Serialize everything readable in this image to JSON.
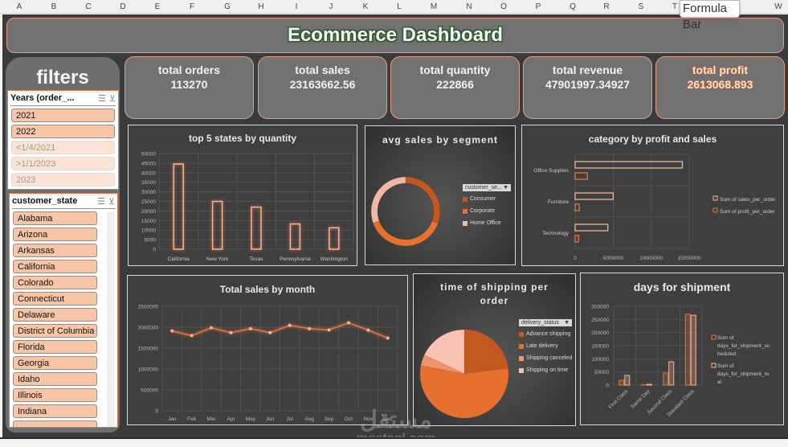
{
  "spreadsheet": {
    "columns": [
      "A",
      "B",
      "C",
      "D",
      "E",
      "F",
      "G",
      "H",
      "I",
      "J",
      "K",
      "L",
      "M",
      "N",
      "O",
      "P",
      "Q",
      "R",
      "S",
      "T",
      "W"
    ],
    "tooltip": "Formula Bar"
  },
  "dashboard": {
    "title": "Ecommerce Dashboard"
  },
  "filters": {
    "title": "filters",
    "years_slicer": {
      "header": "Years (order_...",
      "items": [
        {
          "label": "2021",
          "selected": true
        },
        {
          "label": "2022",
          "selected": true
        },
        {
          "label": "<1/4/2021",
          "selected": false
        },
        {
          "label": ">1/1/2023",
          "selected": false
        },
        {
          "label": "2023",
          "selected": false
        }
      ]
    },
    "state_slicer": {
      "header": "customer_state",
      "items": [
        "Alabama",
        "Arizona",
        "Arkansas",
        "California",
        "Colorado",
        "Connecticut",
        "Delaware",
        "District of Columbia",
        "Florida",
        "Georgia",
        "Idaho",
        "Illinois",
        "Indiana"
      ]
    }
  },
  "kpis": [
    {
      "label": "total orders",
      "value": "113270"
    },
    {
      "label": "total sales",
      "value": "23163662.56"
    },
    {
      "label": "total quantity",
      "value": "222866"
    },
    {
      "label": "total revenue",
      "value": "47901997.34927"
    },
    {
      "label": "total profit",
      "value": "2613068.893"
    }
  ],
  "colors": {
    "accent": "#e3a07a",
    "bar_orange": "#e8743b",
    "bar_light": "#f4b69a",
    "dark_orange": "#c0581f",
    "panel_bg": "#3f3f3f",
    "sheet_bg": "#3b3b3b"
  },
  "chart_data": [
    {
      "id": "top_states",
      "type": "bar",
      "title": "top 5 states by quantity",
      "categories": [
        "California",
        "New York",
        "Texas",
        "Pennsylvania",
        "Washington"
      ],
      "values": [
        44500,
        25000,
        22000,
        13200,
        11200
      ],
      "ylim": [
        0,
        50000
      ],
      "yticks": [
        "50000",
        "45000",
        "40000",
        "35000",
        "30000",
        "25000",
        "20000",
        "15000",
        "10000",
        "5000",
        "0"
      ],
      "grid": true
    },
    {
      "id": "segment",
      "type": "pie",
      "variant": "donut",
      "title": "avg sales by segment",
      "filter_button": "customer_se...",
      "labels": [
        "Consumer",
        "Corporate",
        "Home Office"
      ],
      "values": [
        30.5,
        39,
        30.5
      ],
      "colors": [
        "#c0581f",
        "#e8702e",
        "#f2b7a0"
      ]
    },
    {
      "id": "category",
      "type": "bar",
      "orientation": "horizontal",
      "title": "category by profit and sales",
      "categories": [
        "Office Supplies",
        "Furniture",
        "Technology"
      ],
      "series": [
        {
          "name": "Sum of sales_per_order",
          "values": [
            14100000,
            5000000,
            4300000
          ]
        },
        {
          "name": "Sum of profit_per_order",
          "values": [
            1600000,
            550000,
            450000
          ]
        }
      ],
      "xlim": [
        0,
        15000000
      ],
      "xticks": [
        "0",
        "5000000",
        "10000000",
        "15000000"
      ],
      "legend_position": "right"
    },
    {
      "id": "monthly_sales",
      "type": "line",
      "title": "Total sales by month",
      "x": [
        "Jan",
        "Feb",
        "Mar",
        "Apr",
        "May",
        "Jun",
        "Jul",
        "Aug",
        "Sep",
        "Oct",
        "Nov",
        "Dec"
      ],
      "values": [
        1910000,
        1800000,
        1985000,
        1870000,
        1965000,
        1870000,
        2045000,
        1965000,
        1935000,
        2105000,
        1930000,
        1740000
      ],
      "ylim": [
        0,
        2500000
      ],
      "yticks": [
        "2500000",
        "2000000",
        "1500000",
        "1000000",
        "500000",
        "0"
      ],
      "grid": true
    },
    {
      "id": "shipping_status",
      "type": "pie",
      "title": "time of shipping per order",
      "filter_button": "delivery_status",
      "labels": [
        "Advance shipping",
        "Late delivery",
        "Shipping canceled",
        "Shipping on time"
      ],
      "values": [
        23,
        55,
        4,
        18
      ],
      "colors": [
        "#c0581f",
        "#e8702e",
        "#ef946a",
        "#f6c3b0"
      ]
    },
    {
      "id": "shipment_days",
      "type": "bar",
      "title": "days for shipment",
      "categories": [
        "First Class",
        "Same Day",
        "Second Class",
        "Standard Class"
      ],
      "series": [
        {
          "name": "Sum of days_for_shipment_scheduled",
          "values": [
            18000,
            1000,
            46000,
            270000
          ]
        },
        {
          "name": "Sum of days_for_shipment_real",
          "values": [
            37000,
            3000,
            89000,
            266000
          ]
        }
      ],
      "ylim": [
        0,
        300000
      ],
      "yticks": [
        "300000",
        "250000",
        "200000",
        "150000",
        "100000",
        "50000",
        "0"
      ],
      "legend_position": "right"
    }
  ],
  "watermark": {
    "arabic": "مستقل",
    "latin": "mostaql.com"
  }
}
